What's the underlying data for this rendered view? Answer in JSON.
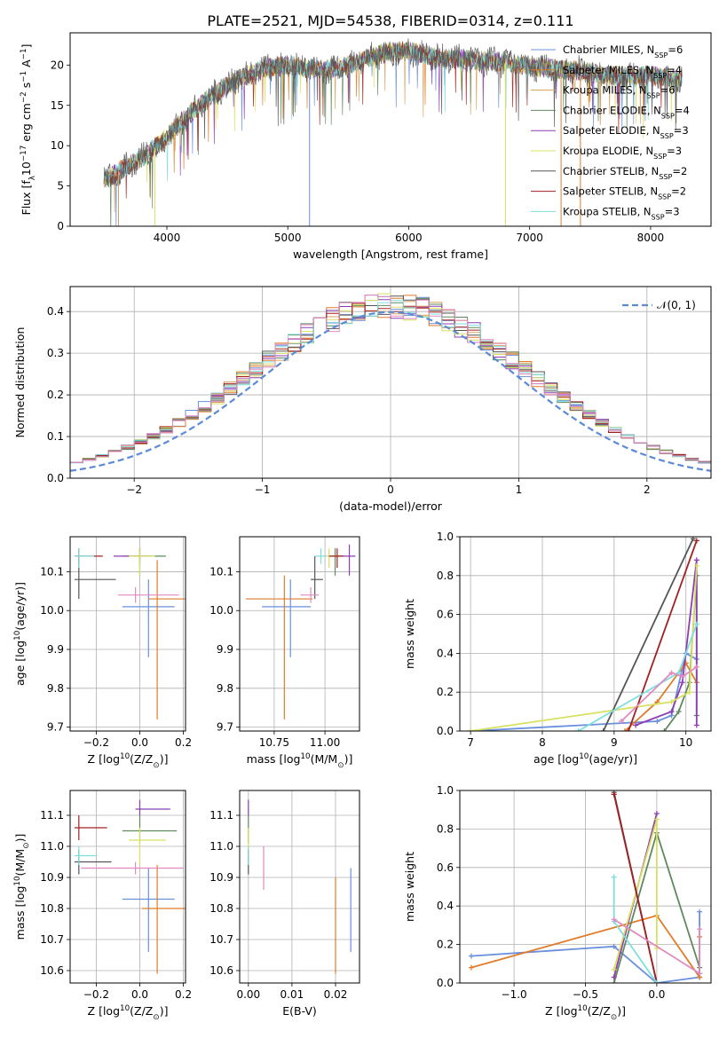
{
  "figure": {
    "suptitle": "PLATE=2521, MJD=54538, FIBERID=0314, z=0.111"
  },
  "colors": {
    "series": [
      "#6a8fdc",
      "#e07c2a",
      "#d6a25a",
      "#5e8a5e",
      "#8e3cb5",
      "#d8e060",
      "#555555",
      "#a32020",
      "#7fdede",
      "#e08ac0",
      "#5aa05a"
    ],
    "gaussian": "#5b8ad6",
    "grid": "#b0b0b0"
  },
  "legend_spectrum": [
    "Chabrier MILES, N$SSP$=6",
    "Salpeter MILES, N$SSP$=4",
    "Kroupa MILES, N$SSP$=6",
    "Chabrier ELODIE, N$SSP$=4",
    "Salpeter ELODIE, N$SSP$=3",
    "Kroupa ELODIE, N$SSP$=3",
    "Chabrier STELIB, N$SSP$=2",
    "Salpeter STELIB, N$SSP$=2",
    "Kroupa STELIB, N$SSP$=3"
  ],
  "legend_hist": "𝒩(0, 1)",
  "chart_data": [
    {
      "id": "spectrum",
      "type": "line",
      "xlabel": "wavelength [Angstrom, rest frame]",
      "ylabel": "Flux [f$λ$10$−17$ erg cm$−2$ s$−1$ A$−1$]",
      "xlim": [
        3200,
        8500
      ],
      "ylim": [
        0,
        24
      ],
      "xticks": [
        4000,
        5000,
        6000,
        7000,
        8000
      ],
      "yticks": [
        0,
        5,
        10,
        15,
        20
      ],
      "grid": false,
      "legend_position": "upper right",
      "x_range": [
        3480,
        8260
      ],
      "envelope": {
        "x": [
          3480,
          3600,
          3800,
          4000,
          4200,
          4400,
          4600,
          4800,
          5000,
          5200,
          5400,
          5600,
          5800,
          6000,
          6200,
          6400,
          6600,
          6800,
          7000,
          7200,
          7400,
          7600,
          7800,
          8000,
          8260
        ],
        "y": [
          5.6,
          6.8,
          8.5,
          11.0,
          14.0,
          16.5,
          18.3,
          19.5,
          20.0,
          19.5,
          19.5,
          20.5,
          21.5,
          21.8,
          21.0,
          20.8,
          20.5,
          20.3,
          19.8,
          19.5,
          19.3,
          18.8,
          18.5,
          18.7,
          18.2
        ]
      }
    },
    {
      "id": "residual_histogram",
      "type": "area",
      "xlabel": "(data-model)/error",
      "ylabel": "Normed distribution",
      "xlim": [
        -2.5,
        2.5
      ],
      "ylim": [
        0,
        0.46
      ],
      "xticks": [
        -2,
        -1,
        0,
        1,
        2
      ],
      "yticks": [
        0.0,
        0.1,
        0.2,
        0.3,
        0.4
      ],
      "grid": true,
      "legend_position": "upper right",
      "bin_width": 0.1
    },
    {
      "id": "age_vs_Z",
      "type": "scatter",
      "xlabel": "Z [log$10$(Z/Z$⊙$)]",
      "ylabel": "age  [log$10$(age/yr)]",
      "xlim": [
        -0.32,
        0.21
      ],
      "ylim": [
        9.69,
        10.19
      ],
      "xticks": [
        -0.2,
        0.0,
        0.2
      ],
      "yticks": [
        9.7,
        9.8,
        9.9,
        10.0,
        10.1
      ],
      "grid": true,
      "errorbars": [
        {
          "series": 0,
          "x": 0.04,
          "y": 10.01,
          "xerr": [
            0.12,
            0.12
          ],
          "yerr": [
            0.13,
            0.07
          ]
        },
        {
          "series": 1,
          "x": 0.08,
          "y": 10.03,
          "xerr": [
            0.04,
            0.13
          ],
          "yerr": [
            0.31,
            0.1
          ]
        },
        {
          "series": 3,
          "x": 0.0,
          "y": 10.14,
          "xerr": [
            0.08,
            0.12
          ],
          "yerr": [
            0.05,
            0.02
          ]
        },
        {
          "series": 4,
          "x": 0.0,
          "y": 10.14,
          "xerr": [
            0.12,
            0.05
          ],
          "yerr": [
            0.02,
            0.02
          ]
        },
        {
          "series": 5,
          "x": 0.0,
          "y": 10.14,
          "xerr": [
            0.05,
            0.07
          ],
          "yerr": [
            0.05,
            0.02
          ]
        },
        {
          "series": 6,
          "x": -0.28,
          "y": 10.08,
          "xerr": [
            0.02,
            0.17
          ],
          "yerr": [
            0.05,
            0.06
          ]
        },
        {
          "series": 7,
          "x": -0.28,
          "y": 10.14,
          "xerr": [
            0.02,
            0.11
          ],
          "yerr": [
            0.02,
            0.02
          ]
        },
        {
          "series": 8,
          "x": -0.28,
          "y": 10.14,
          "xerr": [
            0.02,
            0.07
          ],
          "yerr": [
            0.03,
            0.02
          ]
        },
        {
          "series": 9,
          "x": -0.02,
          "y": 10.04,
          "xerr": [
            0.08,
            0.2
          ],
          "yerr": [
            0.02,
            0.02
          ]
        }
      ]
    },
    {
      "id": "age_vs_mass",
      "type": "scatter",
      "xlabel": "mass [log$10$(M/M$⊙$)]",
      "ylabel": "",
      "xlim": [
        10.58,
        11.17
      ],
      "ylim": [
        9.69,
        10.19
      ],
      "xticks": [
        10.75,
        11.0
      ],
      "yticks": [
        9.7,
        9.8,
        9.9,
        10.0,
        10.1
      ],
      "grid": true,
      "errorbars": [
        {
          "series": 0,
          "x": 10.83,
          "y": 10.01,
          "xerr": [
            0.14,
            0.1
          ],
          "yerr": [
            0.13,
            0.07
          ]
        },
        {
          "series": 1,
          "x": 10.8,
          "y": 10.03,
          "xerr": [
            0.19,
            0.14
          ],
          "yerr": [
            0.31,
            0.06
          ]
        },
        {
          "series": 3,
          "x": 11.05,
          "y": 10.14,
          "xerr": [
            0.03,
            0.04
          ],
          "yerr": [
            0.05,
            0.02
          ]
        },
        {
          "series": 4,
          "x": 11.12,
          "y": 10.14,
          "xerr": [
            0.05,
            0.03
          ],
          "yerr": [
            0.05,
            0.03
          ]
        },
        {
          "series": 5,
          "x": 11.02,
          "y": 10.14,
          "xerr": [
            0.05,
            0.05
          ],
          "yerr": [
            0.03,
            0.02
          ]
        },
        {
          "series": 6,
          "x": 10.95,
          "y": 10.08,
          "xerr": [
            0.02,
            0.04
          ],
          "yerr": [
            0.05,
            0.06
          ]
        },
        {
          "series": 7,
          "x": 11.06,
          "y": 10.14,
          "xerr": [
            0.04,
            0.03
          ],
          "yerr": [
            0.03,
            0.02
          ]
        },
        {
          "series": 8,
          "x": 10.98,
          "y": 10.14,
          "xerr": [
            0.03,
            0.03
          ],
          "yerr": [
            0.02,
            0.02
          ]
        },
        {
          "series": 9,
          "x": 10.93,
          "y": 10.04,
          "xerr": [
            0.05,
            0.04
          ],
          "yerr": [
            0.02,
            0.02
          ]
        }
      ]
    },
    {
      "id": "massweight_vs_age",
      "type": "line",
      "xlabel": "age  [log$10$(age/yr)]",
      "ylabel": "mass weight",
      "xlim": [
        6.85,
        10.35
      ],
      "ylim": [
        0.0,
        1.0
      ],
      "xticks": [
        7,
        8,
        9,
        10
      ],
      "yticks": [
        0.0,
        0.2,
        0.4,
        0.6,
        0.8,
        1.0
      ],
      "grid": true,
      "series": [
        {
          "series": 0,
          "x": [
            7.0,
            9.6,
            9.8,
            10.0,
            10.15
          ],
          "y": [
            0.0,
            0.05,
            0.08,
            0.4,
            0.37
          ]
        },
        {
          "series": 1,
          "x": [
            9.15,
            9.6,
            9.9,
            10.0,
            10.15
          ],
          "y": [
            0.0,
            0.15,
            0.3,
            0.35,
            0.25
          ]
        },
        {
          "series": 3,
          "x": [
            9.7,
            9.9,
            10.05,
            10.15,
            10.15
          ],
          "y": [
            0.0,
            0.1,
            0.25,
            0.8,
            0.08
          ]
        },
        {
          "series": 4,
          "x": [
            9.3,
            9.8,
            9.95,
            10.15,
            10.15
          ],
          "y": [
            0.03,
            0.1,
            0.25,
            0.88,
            0.03
          ]
        },
        {
          "series": 5,
          "x": [
            7.0,
            9.8,
            10.05,
            10.15
          ],
          "y": [
            0.0,
            0.15,
            0.2,
            0.85
          ]
        },
        {
          "series": 6,
          "x": [
            8.85,
            10.1
          ],
          "y": [
            0.0,
            0.99
          ]
        },
        {
          "series": 7,
          "x": [
            9.2,
            10.15
          ],
          "y": [
            0.0,
            0.98
          ]
        },
        {
          "series": 8,
          "x": [
            8.5,
            9.9,
            10.15
          ],
          "y": [
            0.0,
            0.3,
            0.55
          ]
        },
        {
          "series": 9,
          "x": [
            9.1,
            9.8,
            9.95,
            10.15
          ],
          "y": [
            0.05,
            0.3,
            0.28,
            0.33
          ]
        }
      ]
    },
    {
      "id": "mass_vs_Z",
      "type": "scatter",
      "xlabel": "Z [log$10$(Z/Z$⊙$)]",
      "ylabel": "mass [log$10$(M/M$⊙$)]",
      "xlim": [
        -0.32,
        0.21
      ],
      "ylim": [
        10.56,
        11.18
      ],
      "xticks": [
        -0.2,
        0.0,
        0.2
      ],
      "yticks": [
        10.6,
        10.7,
        10.8,
        10.9,
        11.0,
        11.1
      ],
      "grid": true,
      "errorbars": [
        {
          "series": 0,
          "x": 0.04,
          "y": 10.83,
          "xerr": [
            0.12,
            0.12
          ],
          "yerr": [
            0.17,
            0.1
          ]
        },
        {
          "series": 1,
          "x": 0.08,
          "y": 10.8,
          "xerr": [
            0.07,
            0.13
          ],
          "yerr": [
            0.21,
            0.14
          ]
        },
        {
          "series": 3,
          "x": 0.0,
          "y": 11.05,
          "xerr": [
            0.08,
            0.17
          ],
          "yerr": [
            0.04,
            0.05
          ]
        },
        {
          "series": 4,
          "x": 0.0,
          "y": 11.12,
          "xerr": [
            0.02,
            0.14
          ],
          "yerr": [
            0.02,
            0.03
          ]
        },
        {
          "series": 5,
          "x": 0.0,
          "y": 11.02,
          "xerr": [
            0.05,
            0.12
          ],
          "yerr": [
            0.08,
            0.04
          ]
        },
        {
          "series": 6,
          "x": -0.28,
          "y": 10.95,
          "xerr": [
            0.02,
            0.15
          ],
          "yerr": [
            0.04,
            0.04
          ]
        },
        {
          "series": 7,
          "x": -0.28,
          "y": 11.06,
          "xerr": [
            0.02,
            0.13
          ],
          "yerr": [
            0.04,
            0.04
          ]
        },
        {
          "series": 8,
          "x": -0.28,
          "y": 10.97,
          "xerr": [
            0.02,
            0.08
          ],
          "yerr": [
            0.03,
            0.03
          ]
        },
        {
          "series": 9,
          "x": -0.02,
          "y": 10.93,
          "xerr": [
            0.25,
            0.22
          ],
          "yerr": [
            0.02,
            0.02
          ]
        }
      ]
    },
    {
      "id": "mass_vs_ebv",
      "type": "scatter",
      "xlabel": "E(B-V)",
      "ylabel": "",
      "xlim": [
        -0.002,
        0.0255
      ],
      "ylim": [
        10.56,
        11.18
      ],
      "xticks": [
        0.0,
        0.01,
        0.02
      ],
      "yticks": [
        10.6,
        10.7,
        10.8,
        10.9,
        11.0,
        11.1
      ],
      "grid": true,
      "errorbars": [
        {
          "series": 0,
          "x": 0.0235,
          "y": 10.83,
          "xerr": [
            0,
            0
          ],
          "yerr": [
            0.17,
            0.1
          ]
        },
        {
          "series": 1,
          "x": 0.02,
          "y": 10.8,
          "xerr": [
            0,
            0
          ],
          "yerr": [
            0.21,
            0.1
          ]
        },
        {
          "series": 3,
          "x": 0.0,
          "y": 11.05,
          "xerr": [
            0,
            0
          ],
          "yerr": [
            0.04,
            0.05
          ]
        },
        {
          "series": 4,
          "x": 0.0,
          "y": 11.12,
          "xerr": [
            0,
            0
          ],
          "yerr": [
            0.02,
            0.03
          ]
        },
        {
          "series": 5,
          "x": 0.0,
          "y": 11.02,
          "xerr": [
            0,
            0
          ],
          "yerr": [
            0.08,
            0.04
          ]
        },
        {
          "series": 6,
          "x": 0.0,
          "y": 10.95,
          "xerr": [
            0,
            0
          ],
          "yerr": [
            0.04,
            0.04
          ]
        },
        {
          "series": 8,
          "x": 0.0,
          "y": 10.97,
          "xerr": [
            0,
            0
          ],
          "yerr": [
            0.03,
            0.03
          ]
        },
        {
          "series": 9,
          "x": 0.0035,
          "y": 10.93,
          "xerr": [
            0,
            0
          ],
          "yerr": [
            0.07,
            0.07
          ]
        }
      ]
    },
    {
      "id": "massweight_vs_Z",
      "type": "line",
      "xlabel": "Z [log$10$(Z/Z$⊙$)]",
      "ylabel": "mass weight",
      "xlim": [
        -1.38,
        0.38
      ],
      "ylim": [
        0.0,
        1.0
      ],
      "xticks": [
        -1.0,
        -0.5,
        0.0
      ],
      "yticks": [
        0.0,
        0.2,
        0.4,
        0.6,
        0.8,
        1.0
      ],
      "grid": true,
      "series": [
        {
          "series": 0,
          "x": [
            -1.3,
            -0.3,
            0.0,
            0.3,
            0.3
          ],
          "y": [
            0.14,
            0.19,
            0.0,
            0.03,
            0.37
          ]
        },
        {
          "series": 1,
          "x": [
            -1.3,
            0.0,
            0.3,
            0.3
          ],
          "y": [
            0.08,
            0.35,
            0.03,
            0.24
          ]
        },
        {
          "series": 3,
          "x": [
            -0.3,
            0.0,
            0.3,
            0.3
          ],
          "y": [
            0.0,
            0.78,
            0.08,
            0.05
          ]
        },
        {
          "series": 4,
          "x": [
            -0.3,
            0.0
          ],
          "y": [
            0.03,
            0.88
          ]
        },
        {
          "series": 5,
          "x": [
            -0.3,
            0.0,
            0.0
          ],
          "y": [
            0.07,
            0.85,
            0.18
          ]
        },
        {
          "series": 6,
          "x": [
            -0.3,
            0.0
          ],
          "y": [
            0.99,
            0.0
          ]
        },
        {
          "series": 7,
          "x": [
            -0.3,
            0.0
          ],
          "y": [
            0.98,
            0.0
          ]
        },
        {
          "series": 8,
          "x": [
            -0.3,
            -0.3,
            0.0
          ],
          "y": [
            0.55,
            0.32,
            0.0
          ]
        },
        {
          "series": 9,
          "x": [
            -0.3,
            0.3,
            0.3
          ],
          "y": [
            0.33,
            0.05,
            0.28
          ]
        }
      ]
    }
  ]
}
